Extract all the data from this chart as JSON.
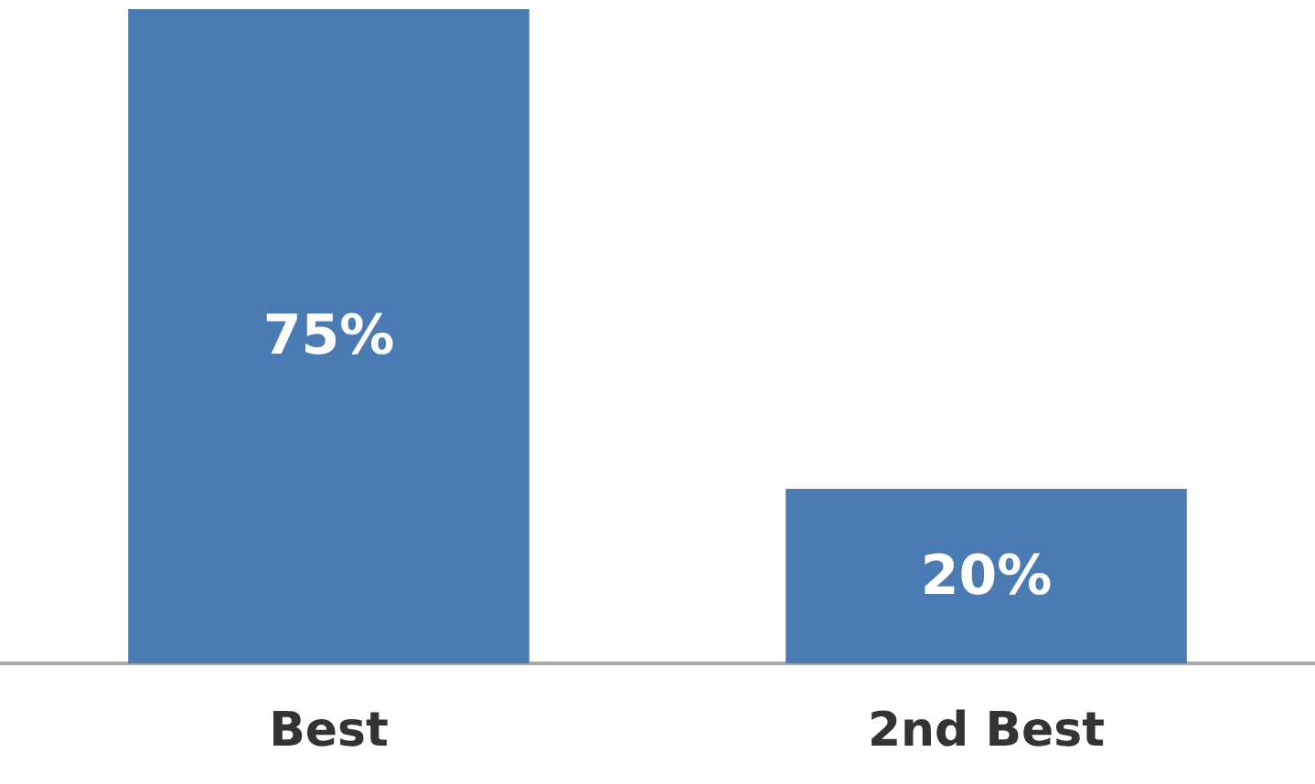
{
  "chart_data": {
    "type": "bar",
    "categories": [
      "Best",
      "2nd Best"
    ],
    "values": [
      75,
      20
    ],
    "value_labels": [
      "75%",
      "20%"
    ],
    "color": "#4a7cb3",
    "tick_labels": "x"
  }
}
